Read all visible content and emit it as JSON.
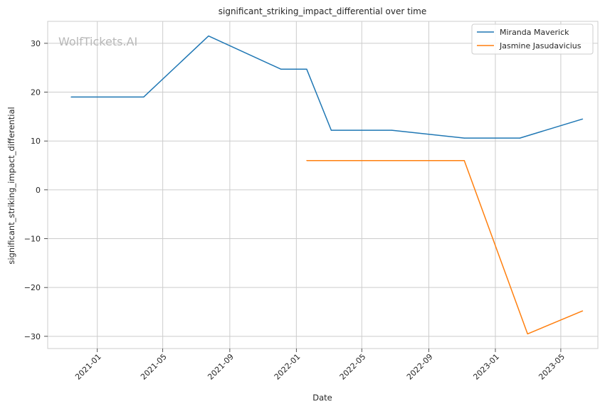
{
  "chart_data": {
    "type": "line",
    "title": "significant_striking_impact_differential over time",
    "xlabel": "Date",
    "ylabel": "significant_striking_impact_differential",
    "watermark": "WolfTickets.AI",
    "x_ticks": [
      "2021-01",
      "2021-05",
      "2021-09",
      "2022-01",
      "2022-05",
      "2022-09",
      "2023-01",
      "2023-05"
    ],
    "y_ticks": [
      30,
      20,
      10,
      0,
      -10,
      -20,
      -30
    ],
    "y_tick_labels": [
      "30",
      "20",
      "10",
      "0",
      "−10",
      "−20",
      "−30"
    ],
    "xlim": [
      "2020-10-02",
      "2023-07-08"
    ],
    "ylim": [
      -32.5,
      34.5
    ],
    "grid": true,
    "legend_position": "top-right",
    "series": [
      {
        "name": "Miranda Maverick",
        "color": "#1f77b4",
        "points": [
          {
            "x": "2020-11-14",
            "y": 19.0
          },
          {
            "x": "2021-03-27",
            "y": 19.0
          },
          {
            "x": "2021-07-24",
            "y": 31.5
          },
          {
            "x": "2021-12-04",
            "y": 24.7
          },
          {
            "x": "2022-01-20",
            "y": 24.7
          },
          {
            "x": "2022-03-06",
            "y": 12.2
          },
          {
            "x": "2022-06-25",
            "y": 12.2
          },
          {
            "x": "2022-11-05",
            "y": 10.6
          },
          {
            "x": "2023-02-15",
            "y": 10.6
          },
          {
            "x": "2023-06-10",
            "y": 14.5
          }
        ]
      },
      {
        "name": "Jasmine Jasudavicius",
        "color": "#ff7f0e",
        "points": [
          {
            "x": "2022-01-20",
            "y": 6.0
          },
          {
            "x": "2022-11-05",
            "y": 6.0
          },
          {
            "x": "2023-03-01",
            "y": -29.5
          },
          {
            "x": "2023-06-10",
            "y": -24.8
          }
        ]
      }
    ]
  }
}
